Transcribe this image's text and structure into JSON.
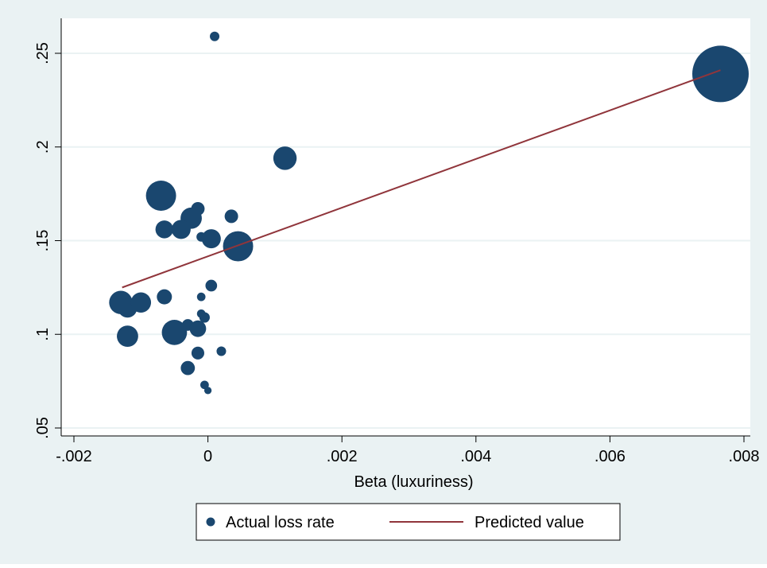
{
  "colors": {
    "outer_background": "#eaf2f3",
    "plot_background": "#ffffff",
    "grid": "#eaf2f3",
    "marker": "#1a476f",
    "fit_line": "#90353b"
  },
  "chart_data": {
    "type": "scatter",
    "xlabel": "Beta (luxuriness)",
    "ylabel": "",
    "xlim": [
      -0.002,
      0.008
    ],
    "ylim": [
      0.05,
      0.25
    ],
    "x_ticks": [
      -0.002,
      0,
      0.002,
      0.004,
      0.006,
      0.008
    ],
    "x_tick_labels": [
      "-.002",
      "0",
      ".002",
      ".004",
      ".006",
      ".008"
    ],
    "y_ticks": [
      0.05,
      0.1,
      0.15,
      0.2,
      0.25
    ],
    "y_tick_labels": [
      ".05",
      ".1",
      ".15",
      ".2",
      ".25"
    ],
    "grid": true,
    "legend_position": "bottom",
    "series": [
      {
        "name": "Actual loss rate",
        "type": "scatter",
        "color": "#1a476f",
        "points": [
          {
            "x": 0.0001,
            "y": 0.259,
            "w": 1
          },
          {
            "x": 0.00765,
            "y": 0.239,
            "w": 35
          },
          {
            "x": 0.00115,
            "y": 0.194,
            "w": 6
          },
          {
            "x": -0.0007,
            "y": 0.174,
            "w": 10
          },
          {
            "x": -0.00015,
            "y": 0.167,
            "w": 2
          },
          {
            "x": -0.00025,
            "y": 0.162,
            "w": 5
          },
          {
            "x": 0.00035,
            "y": 0.163,
            "w": 2
          },
          {
            "x": -0.00065,
            "y": 0.156,
            "w": 3.5
          },
          {
            "x": -0.0004,
            "y": 0.156,
            "w": 4
          },
          {
            "x": -0.0001,
            "y": 0.152,
            "w": 1
          },
          {
            "x": 5e-05,
            "y": 0.151,
            "w": 4
          },
          {
            "x": 0.00045,
            "y": 0.147,
            "w": 10
          },
          {
            "x": 5e-05,
            "y": 0.126,
            "w": 1.5
          },
          {
            "x": -0.00065,
            "y": 0.12,
            "w": 2.5
          },
          {
            "x": -0.0001,
            "y": 0.12,
            "w": 0.8
          },
          {
            "x": -0.0013,
            "y": 0.117,
            "w": 6
          },
          {
            "x": -0.0012,
            "y": 0.114,
            "w": 4
          },
          {
            "x": -0.001,
            "y": 0.117,
            "w": 4.5
          },
          {
            "x": -0.0001,
            "y": 0.111,
            "w": 0.8
          },
          {
            "x": -5e-05,
            "y": 0.109,
            "w": 1.2
          },
          {
            "x": -0.0003,
            "y": 0.105,
            "w": 1.5
          },
          {
            "x": -0.0005,
            "y": 0.101,
            "w": 7
          },
          {
            "x": -0.00015,
            "y": 0.103,
            "w": 3
          },
          {
            "x": -0.0012,
            "y": 0.099,
            "w": 5
          },
          {
            "x": 0.0002,
            "y": 0.091,
            "w": 1
          },
          {
            "x": -0.00015,
            "y": 0.09,
            "w": 1.8
          },
          {
            "x": -0.0003,
            "y": 0.082,
            "w": 2.2
          },
          {
            "x": -5e-05,
            "y": 0.073,
            "w": 0.8
          },
          {
            "x": 0,
            "y": 0.07,
            "w": 0.6
          }
        ]
      },
      {
        "name": "Predicted value",
        "type": "line",
        "color": "#90353b",
        "x": [
          -0.00128,
          0.00765
        ],
        "y": [
          0.125,
          0.241
        ]
      }
    ]
  },
  "legend": {
    "items": [
      {
        "label": "Actual loss rate"
      },
      {
        "label": "Predicted value"
      }
    ]
  }
}
